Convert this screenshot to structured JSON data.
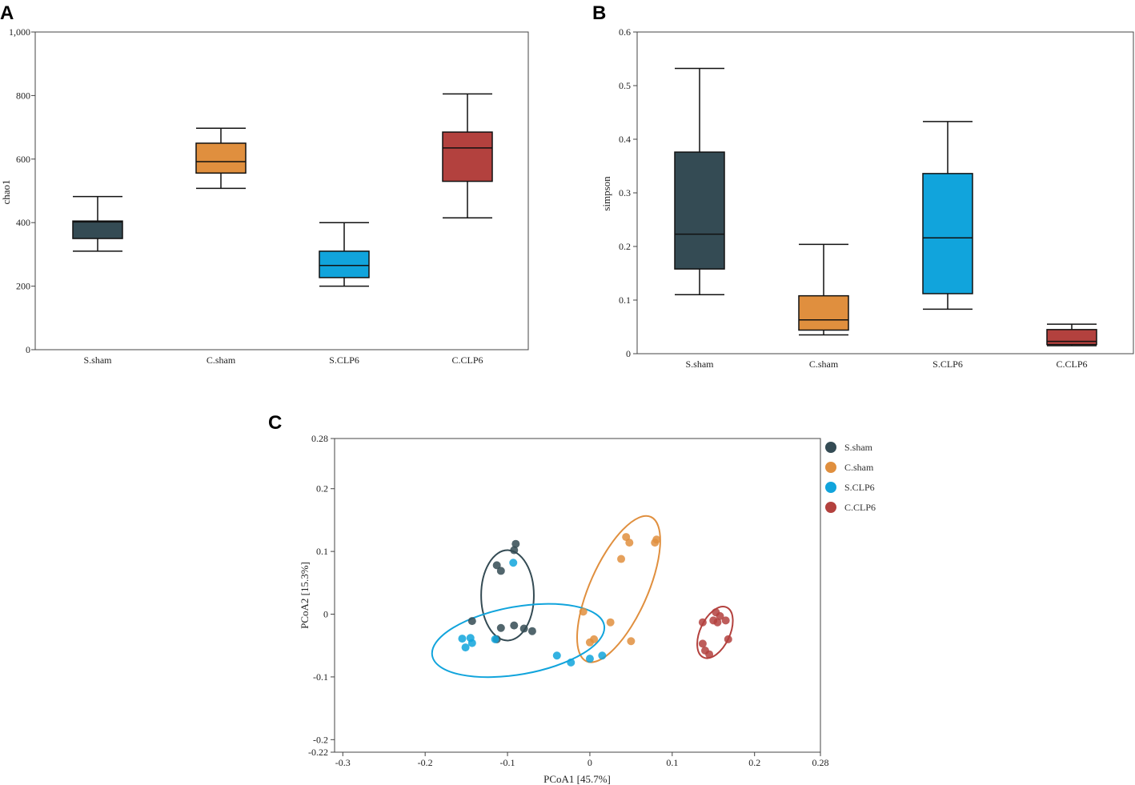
{
  "panels": {
    "a": "A",
    "b": "B",
    "c": "C"
  },
  "colors": {
    "S.sham": "#344b54",
    "C.sham": "#e08f3e",
    "S.CLP6": "#11a4dc",
    "C.CLP6": "#b3413e"
  },
  "chart_data": [
    {
      "id": "A",
      "type": "boxplot",
      "ylabel": "chao1",
      "xlabel": "",
      "ylim": [
        0,
        1000
      ],
      "yticks": [
        0,
        200,
        400,
        600,
        800,
        1000
      ],
      "ytick_labels": [
        "0",
        "200",
        "400",
        "600",
        "800",
        "1,000"
      ],
      "categories": [
        "S.sham",
        "C.sham",
        "S.CLP6",
        "C.CLP6"
      ],
      "boxes": [
        {
          "name": "S.sham",
          "min": 310,
          "q1": 350,
          "median": 402,
          "q3": 405,
          "max": 482
        },
        {
          "name": "C.sham",
          "min": 508,
          "q1": 556,
          "median": 592,
          "q3": 650,
          "max": 697
        },
        {
          "name": "S.CLP6",
          "min": 200,
          "q1": 227,
          "median": 265,
          "q3": 310,
          "max": 400
        },
        {
          "name": "C.CLP6",
          "min": 415,
          "q1": 530,
          "median": 635,
          "q3": 685,
          "max": 805
        }
      ]
    },
    {
      "id": "B",
      "type": "boxplot",
      "ylabel": "simpson",
      "xlabel": "",
      "ylim": [
        0,
        0.6
      ],
      "yticks": [
        0,
        0.1,
        0.2,
        0.3,
        0.4,
        0.5,
        0.6
      ],
      "ytick_labels": [
        "0",
        "0.1",
        "0.2",
        "0.3",
        "0.4",
        "0.5",
        "0.6"
      ],
      "categories": [
        "S.sham",
        "C.sham",
        "S.CLP6",
        "C.CLP6"
      ],
      "boxes": [
        {
          "name": "S.sham",
          "min": 0.11,
          "q1": 0.158,
          "median": 0.223,
          "q3": 0.376,
          "max": 0.532
        },
        {
          "name": "C.sham",
          "min": 0.035,
          "q1": 0.044,
          "median": 0.063,
          "q3": 0.108,
          "max": 0.204
        },
        {
          "name": "S.CLP6",
          "min": 0.083,
          "q1": 0.112,
          "median": 0.216,
          "q3": 0.336,
          "max": 0.433
        },
        {
          "name": "C.CLP6",
          "min": 0.015,
          "q1": 0.017,
          "median": 0.023,
          "q3": 0.045,
          "max": 0.055
        }
      ]
    },
    {
      "id": "C",
      "type": "scatter",
      "xlabel": "PCoA1 [45.7%]",
      "ylabel": "PCoA2 [15.3%]",
      "xlim": [
        -0.31,
        0.28
      ],
      "ylim": [
        -0.22,
        0.28
      ],
      "xticks": [
        -0.3,
        -0.2,
        -0.1,
        0,
        0.1,
        0.2,
        0.28
      ],
      "xtick_labels": [
        "-0.3",
        "-0.2",
        "-0.1",
        "0",
        "0.1",
        "0.2",
        "0.28"
      ],
      "yticks": [
        -0.22,
        -0.2,
        -0.1,
        0,
        0.1,
        0.2,
        0.28
      ],
      "ytick_labels": [
        "-0.22",
        "-0.2",
        "-0.1",
        "0",
        "0.1",
        "0.2",
        "0.28"
      ],
      "legend": [
        "S.sham",
        "C.sham",
        "S.CLP6",
        "C.CLP6"
      ],
      "series": [
        {
          "name": "S.sham",
          "points": [
            [
              -0.09,
              0.112
            ],
            [
              -0.092,
              0.102
            ],
            [
              -0.113,
              0.078
            ],
            [
              -0.108,
              0.069
            ],
            [
              -0.143,
              -0.011
            ],
            [
              -0.108,
              -0.022
            ],
            [
              -0.092,
              -0.018
            ],
            [
              -0.08,
              -0.023
            ],
            [
              -0.07,
              -0.027
            ],
            [
              -0.113,
              -0.04
            ]
          ]
        },
        {
          "name": "C.sham",
          "points": [
            [
              0.044,
              0.123
            ],
            [
              0.048,
              0.114
            ],
            [
              0.081,
              0.119
            ],
            [
              0.079,
              0.114
            ],
            [
              0.038,
              0.088
            ],
            [
              -0.008,
              0.004
            ],
            [
              0.025,
              -0.013
            ],
            [
              0.005,
              -0.04
            ],
            [
              0.0,
              -0.045
            ],
            [
              0.05,
              -0.043
            ]
          ]
        },
        {
          "name": "S.CLP6",
          "points": [
            [
              -0.093,
              0.082
            ],
            [
              -0.155,
              -0.039
            ],
            [
              -0.145,
              -0.038
            ],
            [
              -0.143,
              -0.046
            ],
            [
              -0.151,
              -0.053
            ],
            [
              -0.115,
              -0.04
            ],
            [
              -0.04,
              -0.066
            ],
            [
              -0.023,
              -0.077
            ],
            [
              0.0,
              -0.071
            ],
            [
              0.015,
              -0.066
            ]
          ]
        },
        {
          "name": "C.CLP6",
          "points": [
            [
              0.153,
              0.003
            ],
            [
              0.158,
              -0.003
            ],
            [
              0.165,
              -0.01
            ],
            [
              0.15,
              -0.01
            ],
            [
              0.137,
              -0.013
            ],
            [
              0.155,
              -0.013
            ],
            [
              0.168,
              -0.04
            ],
            [
              0.137,
              -0.047
            ],
            [
              0.14,
              -0.058
            ],
            [
              0.145,
              -0.064
            ]
          ]
        }
      ],
      "ellipses": [
        {
          "name": "S.sham",
          "center": [
            -0.1,
            0.03
          ],
          "rx": 0.032,
          "ry": 0.072,
          "angle_deg": 0
        },
        {
          "name": "C.sham",
          "center": [
            0.035,
            0.04
          ],
          "rx": 0.035,
          "ry": 0.126,
          "angle_deg": 24
        },
        {
          "name": "S.CLP6",
          "center": [
            -0.087,
            -0.042
          ],
          "rx": 0.106,
          "ry": 0.054,
          "angle_deg": -10
        },
        {
          "name": "C.CLP6",
          "center": [
            0.152,
            -0.029
          ],
          "rx": 0.018,
          "ry": 0.044,
          "angle_deg": 25
        }
      ]
    }
  ]
}
